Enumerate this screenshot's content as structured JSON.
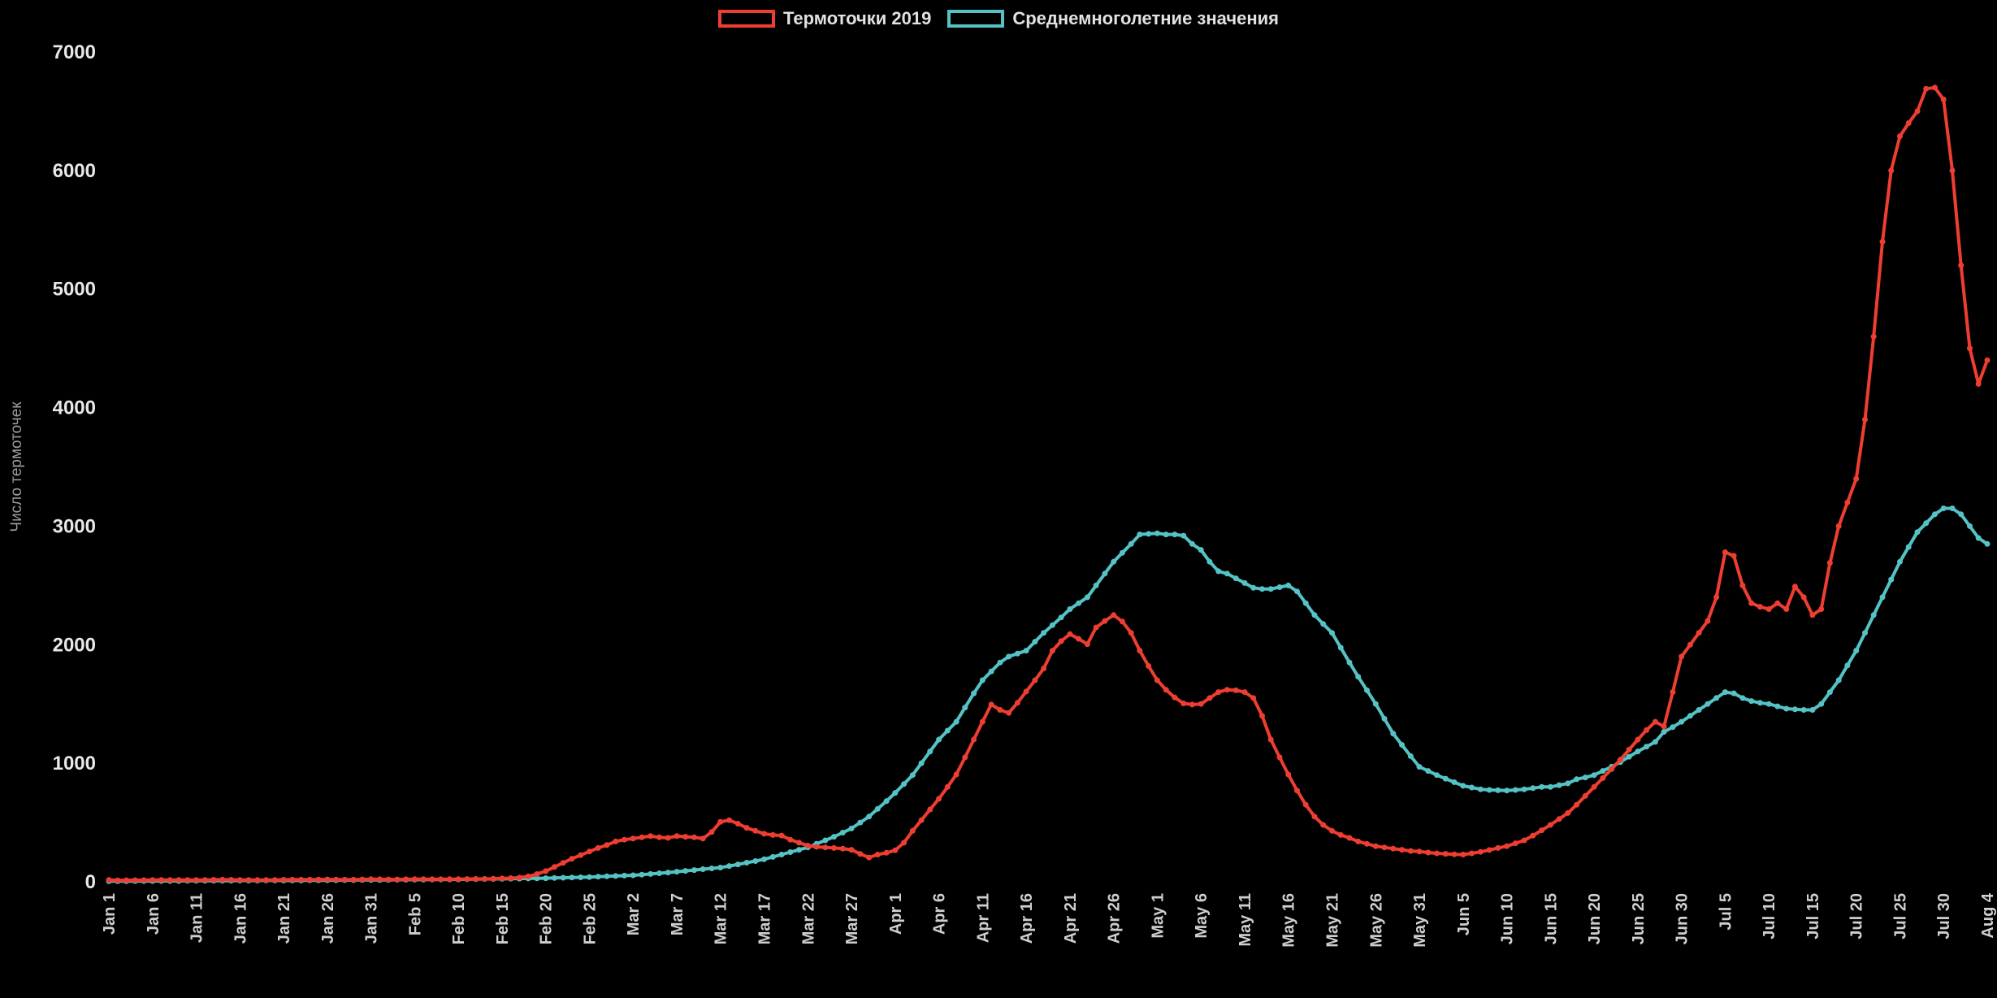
{
  "chart_data": {
    "type": "line",
    "title": "",
    "xlabel": "",
    "ylabel": "Число термоточек",
    "ylim": [
      0,
      7000
    ],
    "y_ticks": [
      0,
      1000,
      2000,
      3000,
      4000,
      5000,
      6000,
      7000
    ],
    "grid": false,
    "background": "#000000",
    "legend_position": "top-center",
    "x_unit": "day-of-year (daily points, Jan 1 = day 0)",
    "x_range_days": [
      0,
      215
    ],
    "x_tick_interval_days": 5,
    "x_tick_labels": [
      "Jan 1",
      "Jan 6",
      "Jan 11",
      "Jan 16",
      "Jan 21",
      "Jan 26",
      "Jan 31",
      "Feb 5",
      "Feb 10",
      "Feb 15",
      "Feb 20",
      "Feb 25",
      "Mar 2",
      "Mar 7",
      "Mar 12",
      "Mar 17",
      "Mar 22",
      "Mar 27",
      "Apr 1",
      "Apr 6",
      "Apr 11",
      "Apr 16",
      "Apr 21",
      "Apr 26",
      "May 1",
      "May 6",
      "May 11",
      "May 16",
      "May 21",
      "May 26",
      "May 31",
      "Jun 5",
      "Jun 10",
      "Jun 15",
      "Jun 20",
      "Jun 25",
      "Jun 30",
      "Jul 5",
      "Jul 10",
      "Jul 15",
      "Jul 20",
      "Jul 25",
      "Jul 30",
      "Aug 4"
    ],
    "marker": "circle",
    "series": [
      {
        "name": "Термоточки 2019",
        "color": "#ee3e32",
        "values": [
          15,
          12,
          13,
          14,
          14,
          15,
          16,
          15,
          16,
          15,
          15,
          16,
          17,
          18,
          17,
          16,
          16,
          15,
          15,
          16,
          17,
          18,
          18,
          18,
          19,
          20,
          19,
          18,
          18,
          20,
          22,
          21,
          20,
          20,
          21,
          22,
          22,
          21,
          21,
          22,
          22,
          23,
          24,
          24,
          26,
          28,
          31,
          35,
          45,
          65,
          90,
          125,
          160,
          195,
          225,
          255,
          285,
          310,
          340,
          355,
          365,
          375,
          385,
          375,
          370,
          385,
          380,
          375,
          365,
          420,
          505,
          520,
          490,
          455,
          430,
          405,
          395,
          390,
          355,
          330,
          305,
          295,
          290,
          285,
          280,
          270,
          235,
          205,
          230,
          245,
          265,
          330,
          430,
          520,
          610,
          700,
          800,
          905,
          1050,
          1200,
          1350,
          1495,
          1450,
          1425,
          1510,
          1605,
          1700,
          1800,
          1950,
          2030,
          2090,
          2050,
          2005,
          2145,
          2200,
          2250,
          2195,
          2100,
          1950,
          1820,
          1700,
          1620,
          1555,
          1505,
          1495,
          1500,
          1550,
          1600,
          1620,
          1615,
          1600,
          1550,
          1400,
          1200,
          1050,
          905,
          770,
          650,
          550,
          480,
          430,
          395,
          370,
          340,
          320,
          300,
          290,
          280,
          270,
          260,
          255,
          247,
          240,
          236,
          232,
          230,
          240,
          252,
          268,
          285,
          300,
          325,
          350,
          390,
          435,
          480,
          530,
          580,
          650,
          725,
          800,
          875,
          950,
          1030,
          1115,
          1200,
          1280,
          1350,
          1310,
          1600,
          1900,
          2000,
          2100,
          2200,
          2400,
          2780,
          2750,
          2500,
          2350,
          2320,
          2300,
          2350,
          2300,
          2490,
          2400,
          2250,
          2300,
          2690,
          3000,
          3200,
          3400,
          3900,
          4600,
          5400,
          6000,
          6290,
          6400,
          6500,
          6690,
          6700,
          6600,
          6000,
          5200,
          4500,
          4200,
          4400
        ]
      },
      {
        "name": "Среднемноголетние значения",
        "color": "#55c3c5",
        "values": [
          5,
          5,
          5,
          6,
          6,
          6,
          7,
          7,
          7,
          8,
          8,
          8,
          9,
          9,
          9,
          10,
          10,
          10,
          11,
          11,
          10,
          11,
          11,
          12,
          12,
          13,
          13,
          14,
          14,
          15,
          15,
          15,
          16,
          17,
          17,
          18,
          18,
          19,
          19,
          20,
          20,
          21,
          22,
          23,
          24,
          25,
          26,
          27,
          28,
          29,
          30,
          32,
          34,
          36,
          38,
          40,
          43,
          46,
          49,
          52,
          55,
          60,
          66,
          72,
          78,
          85,
          92,
          99,
          106,
          113,
          120,
          133,
          147,
          161,
          175,
          190,
          210,
          230,
          250,
          270,
          290,
          320,
          350,
          380,
          415,
          450,
          500,
          550,
          615,
          680,
          750,
          825,
          900,
          1000,
          1100,
          1200,
          1275,
          1350,
          1470,
          1590,
          1700,
          1775,
          1850,
          1900,
          1925,
          1950,
          2025,
          2100,
          2165,
          2230,
          2300,
          2350,
          2400,
          2500,
          2600,
          2700,
          2775,
          2850,
          2930,
          2935,
          2940,
          2930,
          2930,
          2920,
          2850,
          2800,
          2700,
          2620,
          2600,
          2560,
          2520,
          2480,
          2470,
          2470,
          2485,
          2500,
          2450,
          2350,
          2250,
          2175,
          2100,
          1975,
          1850,
          1730,
          1615,
          1500,
          1375,
          1250,
          1155,
          1060,
          970,
          935,
          900,
          870,
          840,
          810,
          795,
          780,
          775,
          772,
          770,
          775,
          780,
          790,
          800,
          800,
          815,
          830,
          865,
          880,
          900,
          935,
          970,
          1010,
          1055,
          1100,
          1140,
          1180,
          1265,
          1305,
          1350,
          1400,
          1450,
          1500,
          1550,
          1600,
          1590,
          1550,
          1525,
          1510,
          1500,
          1480,
          1460,
          1455,
          1450,
          1450,
          1500,
          1600,
          1700,
          1825,
          1950,
          2100,
          2250,
          2400,
          2550,
          2700,
          2825,
          2950,
          3025,
          3100,
          3150,
          3150,
          3100,
          3000,
          2900,
          2850
        ]
      }
    ]
  }
}
